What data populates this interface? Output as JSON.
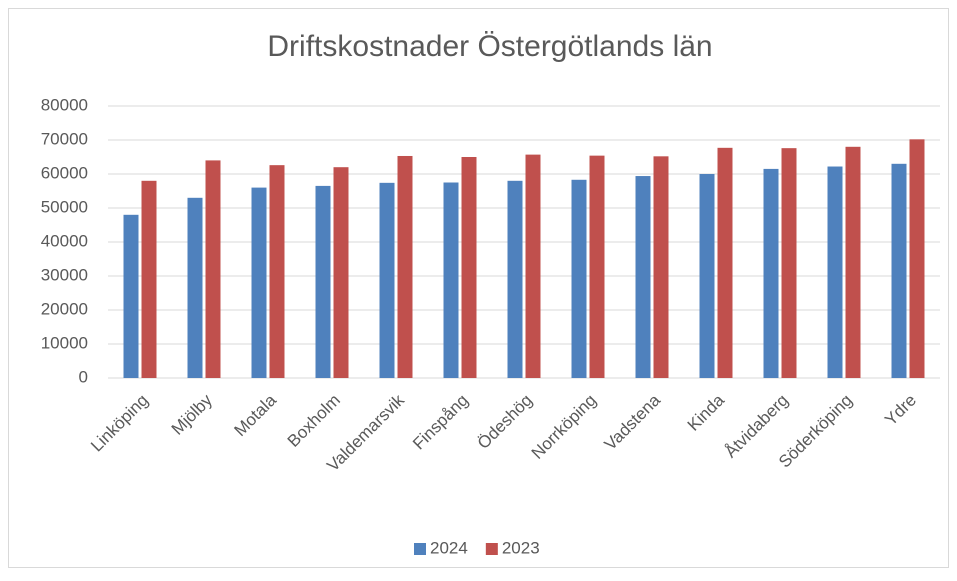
{
  "chart_data": {
    "type": "bar",
    "title": "Driftskostnader Östergötlands län",
    "categories": [
      "Linköping",
      "Mjölby",
      "Motala",
      "Boxholm",
      "Valdemarsvik",
      "Finspång",
      "Ödeshög",
      "Norrköping",
      "Vadstena",
      "Kinda",
      "Åtvidaberg",
      "Söderköping",
      "Ydre"
    ],
    "series": [
      {
        "name": "2024",
        "color": "#4f81bd",
        "values": [
          48000,
          53000,
          56000,
          56500,
          57400,
          57500,
          58000,
          58300,
          59400,
          60000,
          61500,
          62200,
          63000
        ]
      },
      {
        "name": "2023",
        "color": "#c0504d",
        "values": [
          58000,
          64000,
          62600,
          62000,
          65300,
          65000,
          65700,
          65400,
          65200,
          67700,
          67600,
          68000,
          70200
        ]
      }
    ],
    "ylim": [
      0,
      80000
    ],
    "yticks": [
      0,
      10000,
      20000,
      30000,
      40000,
      50000,
      60000,
      70000,
      80000
    ],
    "grid": true,
    "legend": "bottom"
  }
}
